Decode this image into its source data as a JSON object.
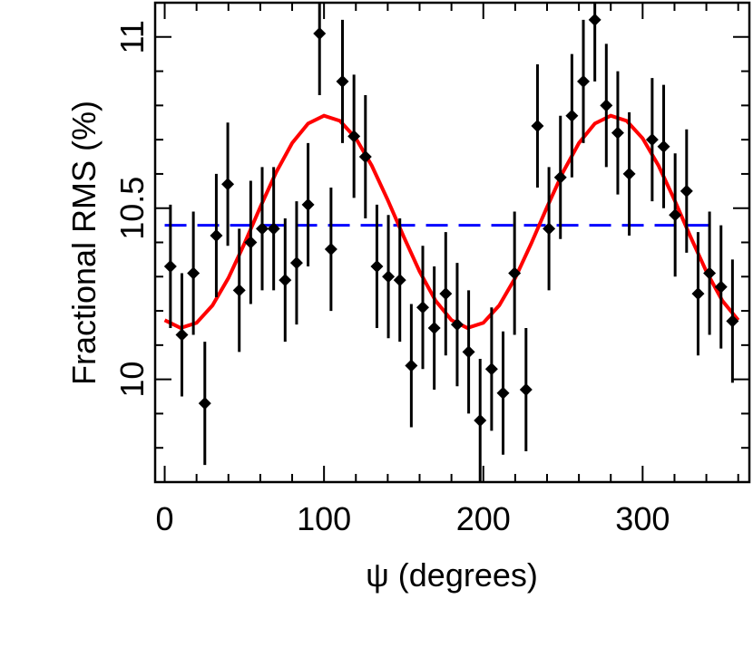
{
  "chart_data": {
    "type": "errorbar",
    "xlabel": "ψ (degrees)",
    "ylabel": "Fractional RMS (%)",
    "xlim": [
      -6,
      367
    ],
    "ylim": [
      9.7,
      11.1
    ],
    "xticks": [
      0,
      100,
      200,
      300
    ],
    "yticks": [
      10,
      10.5,
      11
    ],
    "xticks_minor": [
      20,
      40,
      60,
      80,
      120,
      140,
      160,
      180,
      220,
      240,
      260,
      280,
      320,
      340,
      360
    ],
    "yticks_minor": [
      9.8,
      9.9,
      10.1,
      10.2,
      10.3,
      10.4,
      10.6,
      10.7,
      10.8,
      10.9,
      11.1
    ],
    "series": [
      {
        "color": "#000000",
        "x": [
          3.6,
          10.8,
          18,
          25.2,
          32.4,
          39.6,
          46.8,
          54,
          61.2,
          68.4,
          75.6,
          82.8,
          90,
          97.2,
          104.4,
          111.6,
          118.8,
          126,
          133.2,
          140.4,
          147.6,
          154.8,
          162,
          169.2,
          176.4,
          183.6,
          190.8,
          198,
          205.2,
          212.4,
          219.6,
          226.8,
          234,
          241.2,
          248.4,
          255.6,
          262.8,
          270,
          277.2,
          284.4,
          291.6,
          306,
          313.2,
          320.4,
          327.6,
          334.8,
          342,
          349.2,
          356.4
        ],
        "values": [
          10.33,
          10.13,
          10.31,
          9.93,
          10.42,
          10.57,
          10.26,
          10.4,
          10.44,
          10.44,
          10.29,
          10.34,
          10.51,
          11.01,
          10.38,
          10.87,
          10.71,
          10.65,
          10.33,
          10.3,
          10.29,
          10.04,
          10.21,
          10.15,
          10.25,
          10.16,
          10.08,
          9.88,
          10.03,
          9.96,
          10.31,
          9.97,
          10.74,
          10.44,
          10.59,
          10.77,
          10.87,
          11.05,
          10.8,
          10.72,
          10.6,
          10.7,
          10.68,
          10.48,
          10.55,
          10.25,
          10.31,
          10.27,
          10.17
        ],
        "errors": [
          0.18,
          0.18,
          0.18,
          0.18,
          0.18,
          0.18,
          0.18,
          0.18,
          0.18,
          0.18,
          0.18,
          0.18,
          0.18,
          0.18,
          0.18,
          0.18,
          0.18,
          0.18,
          0.18,
          0.18,
          0.18,
          0.18,
          0.18,
          0.18,
          0.18,
          0.18,
          0.18,
          0.18,
          0.18,
          0.18,
          0.18,
          0.18,
          0.18,
          0.18,
          0.18,
          0.18,
          0.18,
          0.18,
          0.18,
          0.18,
          0.18,
          0.18,
          0.18,
          0.18,
          0.18,
          0.18,
          0.18,
          0.18,
          0.18
        ]
      }
    ],
    "fit": {
      "color": "#ff0000",
      "x": [
        0,
        10,
        20,
        30,
        40,
        50,
        60,
        70,
        80,
        90,
        100,
        110,
        120,
        130,
        140,
        150,
        160,
        170,
        180,
        190,
        200,
        210,
        220,
        230,
        240,
        250,
        260,
        270,
        280,
        290,
        300,
        310,
        320,
        330,
        340,
        350,
        360
      ],
      "values": [
        10.173,
        10.15,
        10.165,
        10.216,
        10.296,
        10.396,
        10.503,
        10.605,
        10.69,
        10.747,
        10.77,
        10.755,
        10.704,
        10.624,
        10.524,
        10.417,
        10.315,
        10.23,
        10.173,
        10.15,
        10.165,
        10.216,
        10.296,
        10.396,
        10.503,
        10.605,
        10.69,
        10.747,
        10.77,
        10.755,
        10.704,
        10.624,
        10.524,
        10.417,
        10.315,
        10.23,
        10.173
      ]
    },
    "mean_line": {
      "color": "#0000ff",
      "x": [
        0,
        346
      ],
      "value": 10.45
    }
  }
}
